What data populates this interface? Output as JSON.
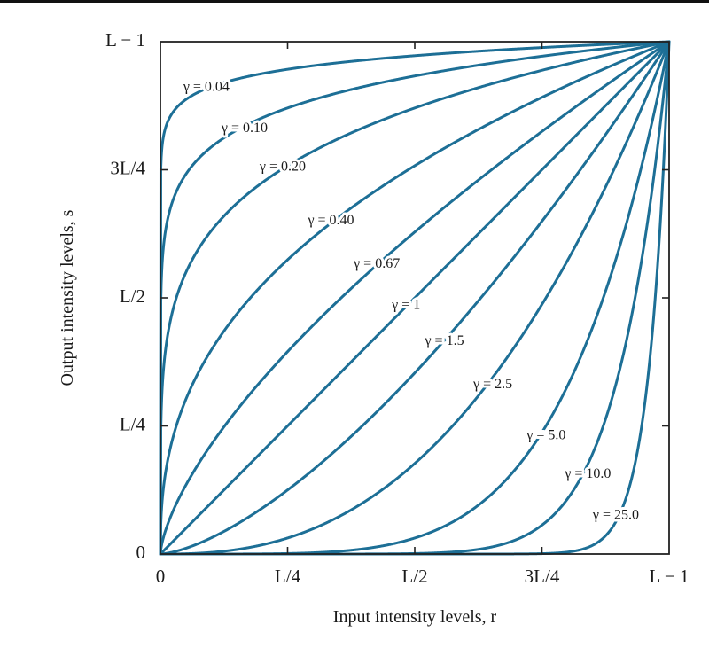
{
  "chart_data": {
    "type": "line",
    "title": "",
    "xlabel": "Input intensity levels, r",
    "ylabel": "Output intensity levels, s",
    "xlim": [
      0,
      1
    ],
    "ylim": [
      0,
      1
    ],
    "grid": false,
    "line_color": "#1d6f96",
    "x_ticks": [
      {
        "value": 0,
        "label": "0"
      },
      {
        "value": 0.25,
        "label": "L/4"
      },
      {
        "value": 0.5,
        "label": "L/2"
      },
      {
        "value": 0.75,
        "label": "3L/4"
      },
      {
        "value": 1,
        "label": "L − 1"
      }
    ],
    "y_ticks": [
      {
        "value": 0,
        "label": "0"
      },
      {
        "value": 0.25,
        "label": "L/4"
      },
      {
        "value": 0.5,
        "label": "L/2"
      },
      {
        "value": 0.75,
        "label": "3L/4"
      },
      {
        "value": 1,
        "label": "L − 1"
      }
    ],
    "series": [
      {
        "name": "γ = 0.04",
        "gamma": 0.04,
        "label_at": [
          0.045,
          0.91
        ]
      },
      {
        "name": "γ = 0.10",
        "gamma": 0.1,
        "label_at": [
          0.12,
          0.83
        ]
      },
      {
        "name": "γ = 0.20",
        "gamma": 0.2,
        "label_at": [
          0.195,
          0.755
        ]
      },
      {
        "name": "γ = 0.40",
        "gamma": 0.4,
        "label_at": [
          0.29,
          0.65
        ]
      },
      {
        "name": "γ = 0.67",
        "gamma": 0.67,
        "label_at": [
          0.38,
          0.565
        ]
      },
      {
        "name": "γ = 1",
        "gamma": 1,
        "label_at": [
          0.455,
          0.485
        ]
      },
      {
        "name": "γ = 1.5",
        "gamma": 1.5,
        "label_at": [
          0.52,
          0.415
        ]
      },
      {
        "name": "γ = 2.5",
        "gamma": 2.5,
        "label_at": [
          0.615,
          0.33
        ]
      },
      {
        "name": "γ = 5.0",
        "gamma": 5.0,
        "label_at": [
          0.72,
          0.23
        ]
      },
      {
        "name": "γ = 10.0",
        "gamma": 10.0,
        "label_at": [
          0.795,
          0.155
        ]
      },
      {
        "name": "γ = 25.0",
        "gamma": 25.0,
        "label_at": [
          0.85,
          0.075
        ]
      }
    ]
  }
}
